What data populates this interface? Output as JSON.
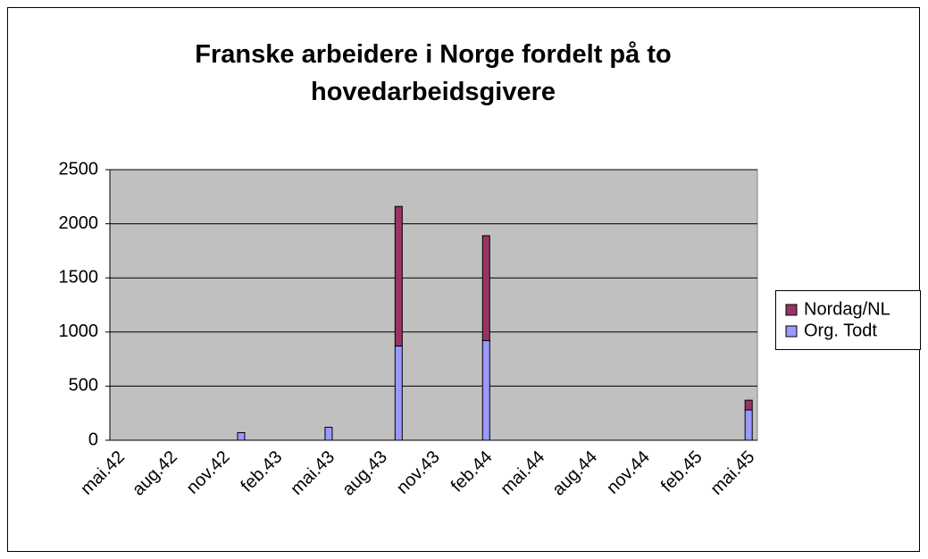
{
  "chart_data": {
    "type": "bar",
    "stacked": true,
    "title": "Franske arbeidere i Norge fordelt på to hovedarbeidsgivere",
    "categories": [
      "mai.42",
      null,
      null,
      "aug.42",
      null,
      null,
      "nov.42",
      null,
      null,
      "feb.43",
      null,
      null,
      "mai.43",
      null,
      null,
      "aug.43",
      null,
      null,
      "nov.43",
      null,
      null,
      "feb.44",
      null,
      null,
      "mai.44",
      null,
      null,
      "aug.44",
      null,
      null,
      "nov.44",
      null,
      null,
      "feb.45",
      null,
      null,
      "mai.45"
    ],
    "series": [
      {
        "name": "Org. Todt",
        "color": "#9999ff",
        "values": [
          null,
          null,
          null,
          null,
          null,
          null,
          null,
          70,
          null,
          null,
          null,
          null,
          120,
          null,
          null,
          null,
          870,
          null,
          null,
          null,
          null,
          920,
          null,
          null,
          null,
          null,
          null,
          null,
          null,
          null,
          null,
          null,
          null,
          null,
          null,
          null,
          280
        ]
      },
      {
        "name": "Nordag/NL",
        "color": "#993366",
        "values": [
          null,
          null,
          null,
          null,
          null,
          null,
          null,
          null,
          null,
          null,
          null,
          null,
          null,
          null,
          null,
          null,
          1290,
          null,
          null,
          null,
          null,
          970,
          null,
          null,
          null,
          null,
          null,
          null,
          null,
          null,
          null,
          null,
          null,
          null,
          null,
          null,
          90
        ]
      }
    ],
    "ylim": [
      0,
      2500
    ],
    "yticks": [
      0,
      500,
      1000,
      1500,
      2000,
      2500
    ],
    "grid": true,
    "legend": "right"
  }
}
